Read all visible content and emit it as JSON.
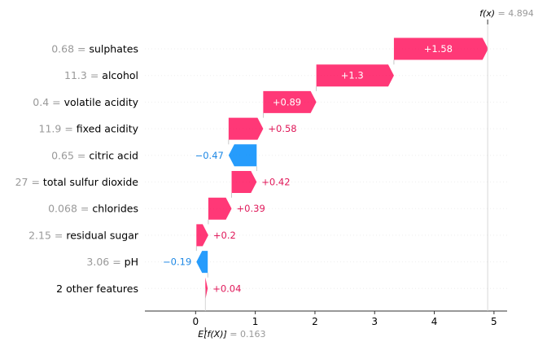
{
  "chart_data": {
    "type": "waterfall",
    "base_value": 0.163,
    "base_label": "E[f(X)]",
    "base_display": "0.163",
    "output_value": 4.894,
    "output_label": "f(x)",
    "output_display": "4.894",
    "xlim": [
      -0.85,
      5.22
    ],
    "x_ticks": [
      0,
      1,
      2,
      3,
      4,
      5
    ],
    "x_tick_labels": [
      "0",
      "1",
      "2",
      "3",
      "4",
      "5"
    ],
    "features": [
      {
        "value": "0.68",
        "name": "sulphates",
        "contribution": 1.58,
        "label": "+1.58"
      },
      {
        "value": "11.3",
        "name": "alcohol",
        "contribution": 1.3,
        "label": "+1.3"
      },
      {
        "value": "0.4",
        "name": "volatile acidity",
        "contribution": 0.89,
        "label": "+0.89"
      },
      {
        "value": "11.9",
        "name": "fixed acidity",
        "contribution": 0.58,
        "label": "+0.58"
      },
      {
        "value": "0.65",
        "name": "citric acid",
        "contribution": -0.47,
        "label": "−0.47"
      },
      {
        "value": "27",
        "name": "total sulfur dioxide",
        "contribution": 0.42,
        "label": "+0.42"
      },
      {
        "value": "0.068",
        "name": "chlorides",
        "contribution": 0.39,
        "label": "+0.39"
      },
      {
        "value": "2.15",
        "name": "residual sugar",
        "contribution": 0.2,
        "label": "+0.2"
      },
      {
        "value": "3.06",
        "name": "pH",
        "contribution": -0.19,
        "label": "−0.19"
      },
      {
        "value": "",
        "name": "2 other features",
        "contribution": 0.04,
        "label": "+0.04"
      }
    ],
    "colors": {
      "positive": "#ff0051",
      "negative": "#008bfb",
      "positive_text": "#e0195a",
      "negative_text": "#1e88e5"
    }
  }
}
